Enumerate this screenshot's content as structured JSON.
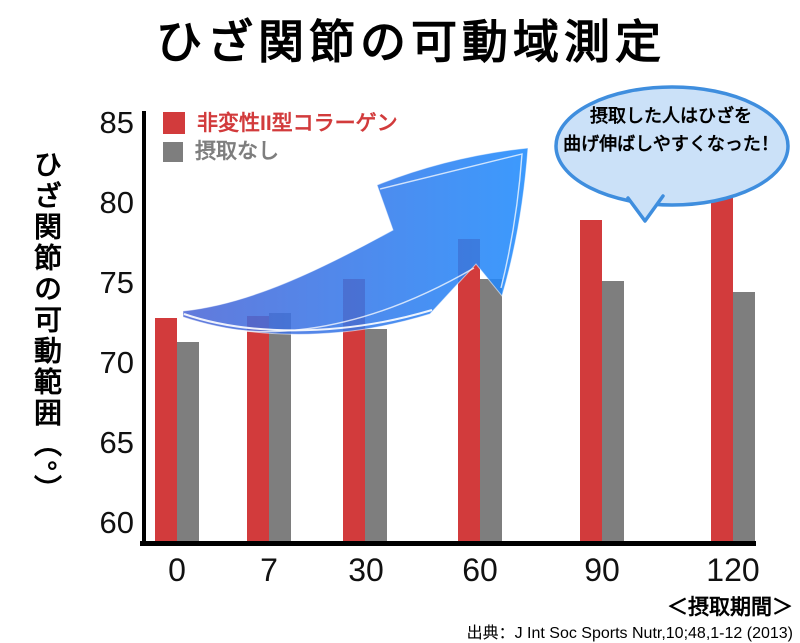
{
  "title": "ひざ関節の可動域測定",
  "y_axis": {
    "label": "ひざ関節の可動範囲（°）",
    "ticks": [
      85,
      80,
      75,
      70,
      65,
      60
    ]
  },
  "x_axis": {
    "ticks": [
      "0",
      "7",
      "30",
      "60",
      "90",
      "120"
    ],
    "caption": "＜摂取期間＞"
  },
  "legend": {
    "items": [
      {
        "label": "非変性II型コラーゲン",
        "color": "#d23b3c"
      },
      {
        "label": "摂取なし",
        "color": "#7e7e7e"
      }
    ]
  },
  "callout": {
    "line1": "摂取した人はひざを",
    "line2": "曲げ伸ばしやすくなった！",
    "fill_color": "#cbe1f8",
    "border_color": "#3f8ede"
  },
  "arrow": {
    "description": "upward-trend-arrow",
    "gradient_start": "#4b66d6",
    "gradient_end": "#1f8bfd"
  },
  "source": "出典：J Int Soc Sports Nutr,10;48,1-12 (2013)",
  "chart_data": {
    "type": "bar",
    "title": "ひざ関節の可動域測定",
    "categories": [
      "0",
      "7",
      "30",
      "60",
      "90",
      "120"
    ],
    "series": [
      {
        "name": "非変性II型コラーゲン",
        "color": "#d23b3c",
        "values": [
          72.8,
          72.9,
          75.2,
          77.7,
          78.9,
          80.7
        ]
      },
      {
        "name": "摂取なし",
        "color": "#7e7e7e",
        "values": [
          71.3,
          73.1,
          72.1,
          75.2,
          75.1,
          74.4
        ]
      }
    ],
    "xlabel": "＜摂取期間＞",
    "ylabel": "ひざ関節の可動範囲（°）",
    "ylim": [
      60,
      85
    ],
    "y_tick_step": 5,
    "grid": false,
    "legend_position": "top-left",
    "annotation": "摂取した人はひざを曲げ伸ばしやすくなった！"
  }
}
